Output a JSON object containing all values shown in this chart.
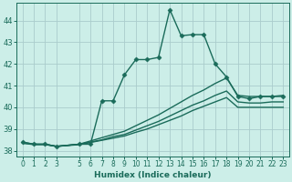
{
  "xlabel": "Humidex (Indice chaleur)",
  "bg_color": "#cceee8",
  "grid_color": "#aacccc",
  "line_color": "#1a6b5a",
  "xlim": [
    -0.5,
    23.5
  ],
  "ylim": [
    37.75,
    44.8
  ],
  "xticks": [
    0,
    1,
    2,
    3,
    5,
    6,
    7,
    8,
    9,
    10,
    11,
    12,
    13,
    14,
    15,
    16,
    17,
    18,
    19,
    20,
    21,
    22,
    23
  ],
  "yticks": [
    38,
    39,
    40,
    41,
    42,
    43,
    44
  ],
  "series": [
    {
      "x": [
        0,
        1,
        2,
        3,
        5,
        6,
        7,
        8,
        9,
        10,
        11,
        12,
        13,
        14,
        15,
        16,
        17,
        18,
        19,
        20,
        21,
        22,
        23
      ],
      "y": [
        38.4,
        38.3,
        38.3,
        38.2,
        38.3,
        38.3,
        40.3,
        40.3,
        41.5,
        42.2,
        42.2,
        42.3,
        44.5,
        43.3,
        43.35,
        43.35,
        42.0,
        41.4,
        40.5,
        40.4,
        40.5,
        40.5,
        40.5
      ],
      "marker": "D",
      "markersize": 2.5,
      "linewidth": 1.0
    },
    {
      "x": [
        0,
        1,
        2,
        3,
        5,
        6,
        7,
        8,
        9,
        10,
        11,
        12,
        13,
        14,
        15,
        16,
        17,
        18,
        19,
        20,
        21,
        22,
        23
      ],
      "y": [
        38.4,
        38.3,
        38.3,
        38.2,
        38.3,
        38.45,
        38.6,
        38.75,
        38.9,
        39.15,
        39.4,
        39.65,
        39.95,
        40.25,
        40.55,
        40.8,
        41.1,
        41.35,
        40.55,
        40.5,
        40.5,
        40.5,
        40.55
      ],
      "marker": null,
      "linewidth": 1.0
    },
    {
      "x": [
        0,
        1,
        2,
        3,
        5,
        6,
        7,
        8,
        9,
        10,
        11,
        12,
        13,
        14,
        15,
        16,
        17,
        18,
        19,
        20,
        21,
        22,
        23
      ],
      "y": [
        38.35,
        38.3,
        38.3,
        38.2,
        38.3,
        38.4,
        38.5,
        38.65,
        38.75,
        38.95,
        39.15,
        39.35,
        39.6,
        39.85,
        40.1,
        40.3,
        40.55,
        40.75,
        40.25,
        40.2,
        40.2,
        40.25,
        40.25
      ],
      "marker": null,
      "linewidth": 1.0
    },
    {
      "x": [
        0,
        1,
        2,
        3,
        5,
        6,
        7,
        8,
        9,
        10,
        11,
        12,
        13,
        14,
        15,
        16,
        17,
        18,
        19,
        20,
        21,
        22,
        23
      ],
      "y": [
        38.35,
        38.28,
        38.28,
        38.2,
        38.28,
        38.38,
        38.48,
        38.58,
        38.68,
        38.85,
        39.0,
        39.2,
        39.4,
        39.6,
        39.85,
        40.05,
        40.25,
        40.45,
        40.0,
        40.0,
        40.0,
        40.0,
        40.0
      ],
      "marker": null,
      "linewidth": 1.0
    }
  ]
}
